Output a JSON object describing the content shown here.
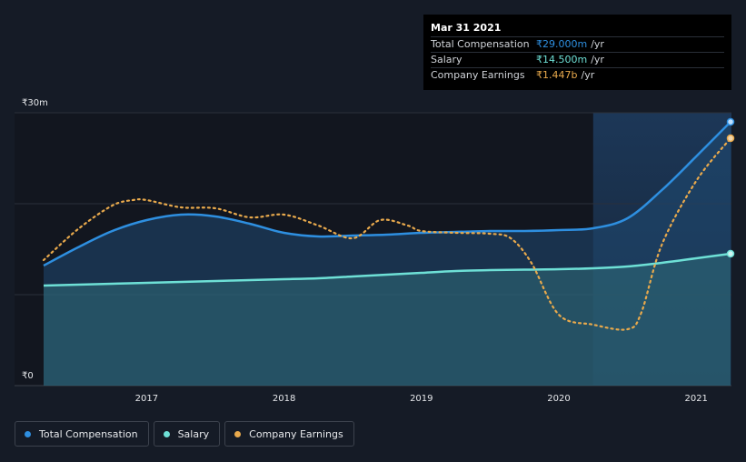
{
  "colors": {
    "total": "#2e8fe0",
    "salary": "#6ee0d6",
    "earnings": "#e8a94c",
    "background": "#151b26"
  },
  "tooltip": {
    "date": "Mar 31 2021",
    "rows": [
      {
        "label": "Total Compensation",
        "value": "₹29.000m",
        "unit": "/yr"
      },
      {
        "label": "Salary",
        "value": "₹14.500m",
        "unit": "/yr"
      },
      {
        "label": "Company Earnings",
        "value": "₹1.447b",
        "unit": "/yr"
      }
    ]
  },
  "legend": {
    "items": [
      {
        "label": "Total Compensation"
      },
      {
        "label": "Salary"
      },
      {
        "label": "Company Earnings"
      }
    ]
  },
  "chart_data": {
    "type": "line",
    "title": "",
    "xlabel": "",
    "ylabel": "",
    "ylim": [
      0,
      30
    ],
    "xlim": [
      2016.25,
      2021.25
    ],
    "y_tick_labels": [
      {
        "value": 0,
        "label": "₹0"
      },
      {
        "value": 30,
        "label": "₹30m"
      }
    ],
    "x_ticks": [
      {
        "value": 2017,
        "label": "2017"
      },
      {
        "value": 2018,
        "label": "2018"
      },
      {
        "value": 2019,
        "label": "2019"
      },
      {
        "value": 2020,
        "label": "2020"
      },
      {
        "value": 2021,
        "label": "2021"
      }
    ],
    "highlight_from": 2020.25,
    "series": [
      {
        "name": "Total Compensation",
        "unit": "₹m",
        "x": [
          2016.25,
          2016.5,
          2016.75,
          2017.0,
          2017.25,
          2017.5,
          2017.75,
          2018.0,
          2018.25,
          2018.5,
          2018.75,
          2019.0,
          2019.25,
          2019.5,
          2019.75,
          2020.0,
          2020.25,
          2020.5,
          2020.75,
          2021.0,
          2021.25
        ],
        "values": [
          13.2,
          15.2,
          17.0,
          18.2,
          18.8,
          18.6,
          17.8,
          16.8,
          16.4,
          16.5,
          16.6,
          16.8,
          16.9,
          17.0,
          17.0,
          17.1,
          17.3,
          18.4,
          21.5,
          25.2,
          29.0
        ]
      },
      {
        "name": "Salary",
        "unit": "₹m",
        "x": [
          2016.25,
          2016.5,
          2016.75,
          2017.0,
          2017.25,
          2017.5,
          2017.75,
          2018.0,
          2018.25,
          2018.5,
          2018.75,
          2019.0,
          2019.25,
          2019.5,
          2019.75,
          2020.0,
          2020.25,
          2020.5,
          2020.75,
          2021.0,
          2021.25
        ],
        "values": [
          11.0,
          11.1,
          11.2,
          11.3,
          11.4,
          11.5,
          11.6,
          11.7,
          11.8,
          12.0,
          12.2,
          12.4,
          12.6,
          12.7,
          12.75,
          12.8,
          12.9,
          13.1,
          13.5,
          14.0,
          14.5
        ]
      },
      {
        "name": "Company Earnings",
        "unit": "₹m (rescaled to chart axis)",
        "x": [
          2016.25,
          2016.5,
          2016.75,
          2016.9,
          2017.0,
          2017.25,
          2017.5,
          2017.75,
          2018.0,
          2018.25,
          2018.5,
          2018.7,
          2018.9,
          2019.0,
          2019.25,
          2019.5,
          2019.65,
          2019.8,
          2020.0,
          2020.25,
          2020.5,
          2020.6,
          2020.75,
          2021.0,
          2021.25
        ],
        "values": [
          13.8,
          17.2,
          19.8,
          20.4,
          20.4,
          19.6,
          19.5,
          18.5,
          18.8,
          17.6,
          16.2,
          18.2,
          17.6,
          17.0,
          16.8,
          16.7,
          16.2,
          13.5,
          7.8,
          6.7,
          6.2,
          8.0,
          15.5,
          22.5,
          27.2
        ]
      }
    ]
  }
}
